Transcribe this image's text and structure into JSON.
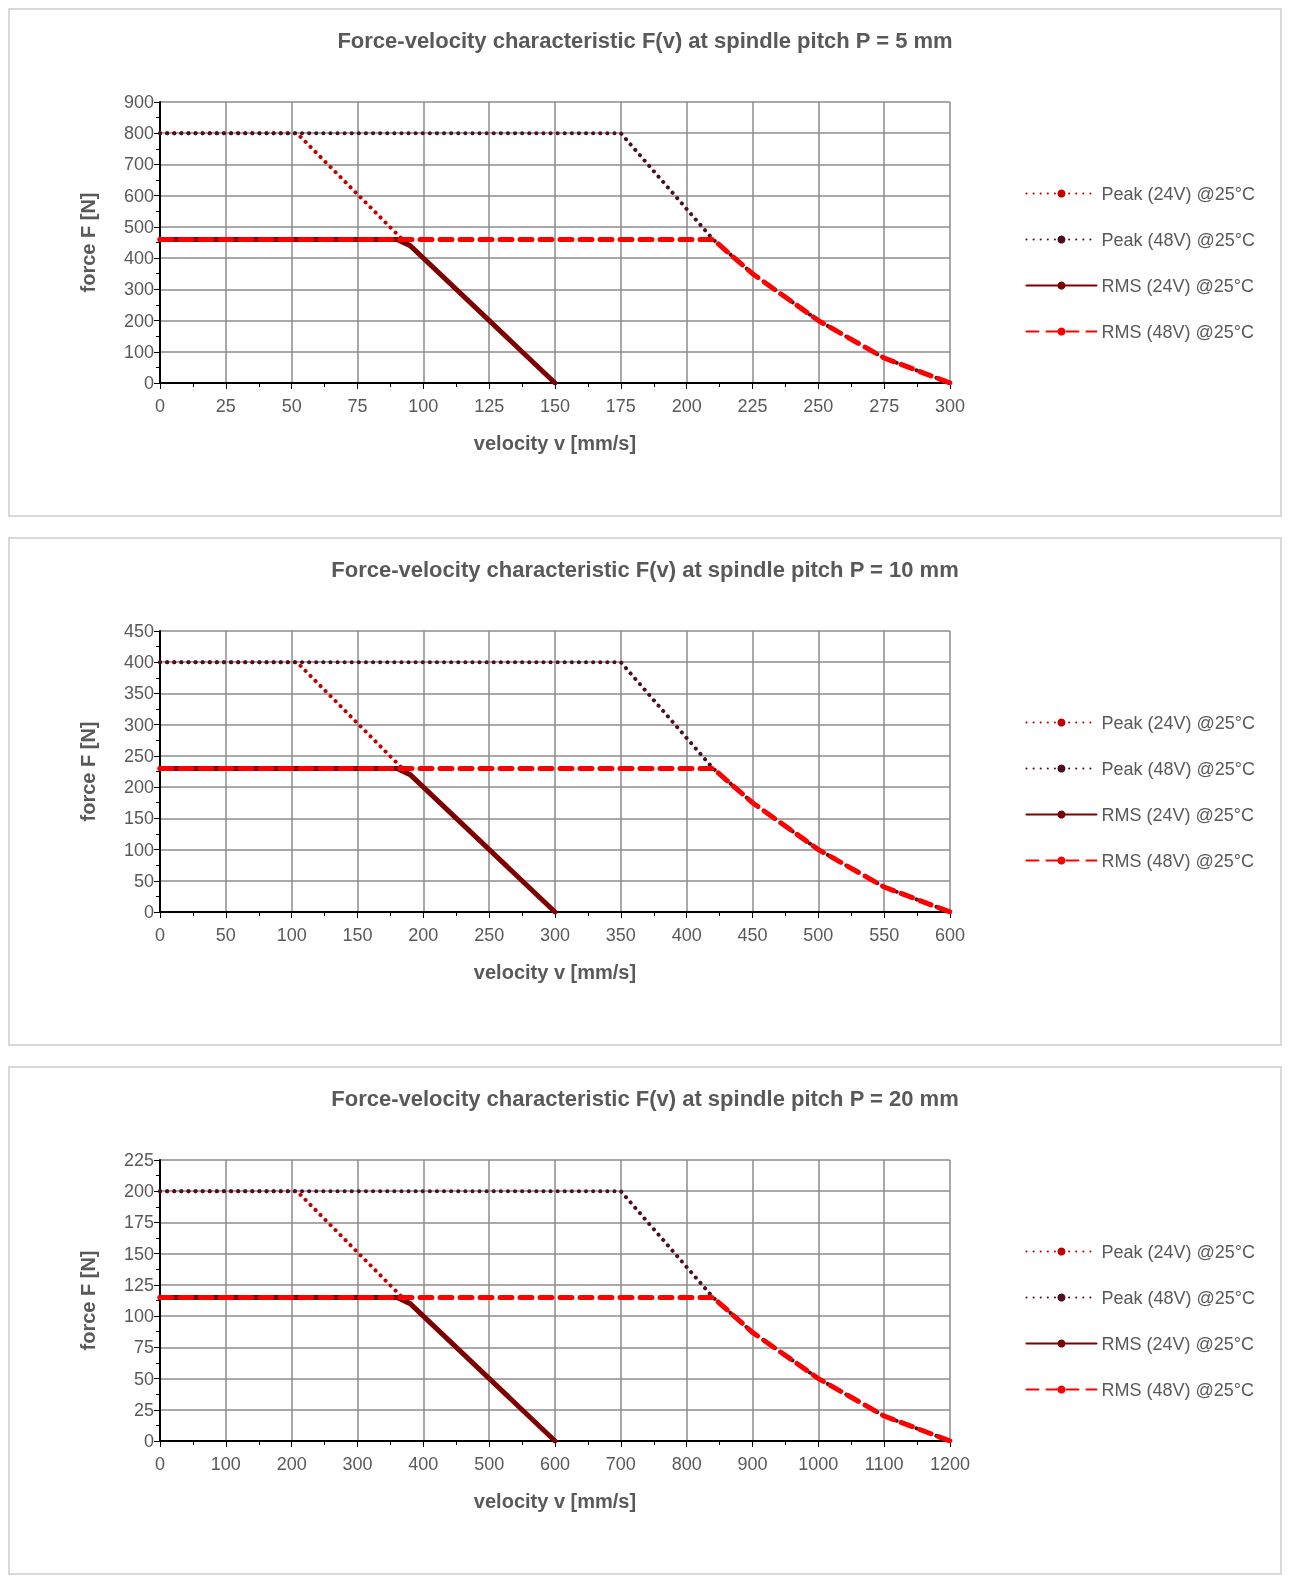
{
  "chart_data": [
    {
      "type": "line",
      "title": "Force-velocity characteristic F(v) at spindle pitch P = 5 mm",
      "xlabel": "velocity v [mm/s]",
      "ylabel": "force F [N]",
      "xlim": [
        0,
        300
      ],
      "xticks": [
        0,
        25,
        50,
        75,
        100,
        125,
        150,
        175,
        200,
        225,
        250,
        275,
        300
      ],
      "ylim": [
        0,
        900
      ],
      "yticks": [
        0,
        100,
        200,
        300,
        400,
        500,
        600,
        700,
        800,
        900
      ],
      "grid": true,
      "legend": "right",
      "series": [
        {
          "name": "Peak (24V) @25°C",
          "color": "#c00000",
          "line_style": "dotted",
          "x": [
            0,
            52,
            92
          ],
          "values": [
            800,
            800,
            460
          ]
        },
        {
          "name": "Peak (48V) @25°C",
          "color": "#4d0f1f",
          "line_style": "dotted",
          "x": [
            0,
            175,
            210,
            225,
            250,
            275,
            300
          ],
          "values": [
            800,
            800,
            460,
            350,
            200,
            80,
            0
          ]
        },
        {
          "name": "RMS (24V) @25°C",
          "color": "#7f0000",
          "line_style": "solid",
          "x": [
            0,
            90,
            95,
            150
          ],
          "values": [
            460,
            460,
            440,
            0
          ]
        },
        {
          "name": "RMS (48V) @25°C",
          "color": "#ff0000",
          "line_style": "dashed",
          "x": [
            0,
            210,
            225,
            250,
            275,
            300
          ],
          "values": [
            460,
            460,
            350,
            200,
            80,
            0
          ]
        }
      ]
    },
    {
      "type": "line",
      "title": "Force-velocity characteristic F(v) at spindle pitch P = 10 mm",
      "xlabel": "velocity v [mm/s]",
      "ylabel": "force F [N]",
      "xlim": [
        0,
        600
      ],
      "xticks": [
        0,
        50,
        100,
        150,
        200,
        250,
        300,
        350,
        400,
        450,
        500,
        550,
        600
      ],
      "ylim": [
        0,
        450
      ],
      "yticks": [
        0,
        50,
        100,
        150,
        200,
        250,
        300,
        350,
        400,
        450
      ],
      "grid": true,
      "legend": "right",
      "series": [
        {
          "name": "Peak (24V) @25°C",
          "color": "#c00000",
          "line_style": "dotted",
          "x": [
            0,
            104,
            184
          ],
          "values": [
            400,
            400,
            230
          ]
        },
        {
          "name": "Peak (48V) @25°C",
          "color": "#4d0f1f",
          "line_style": "dotted",
          "x": [
            0,
            350,
            420,
            450,
            500,
            550,
            600
          ],
          "values": [
            400,
            400,
            230,
            175,
            100,
            40,
            0
          ]
        },
        {
          "name": "RMS (24V) @25°C",
          "color": "#7f0000",
          "line_style": "solid",
          "x": [
            0,
            180,
            190,
            300
          ],
          "values": [
            230,
            230,
            220,
            0
          ]
        },
        {
          "name": "RMS (48V) @25°C",
          "color": "#ff0000",
          "line_style": "dashed",
          "x": [
            0,
            420,
            450,
            500,
            550,
            600
          ],
          "values": [
            230,
            230,
            175,
            100,
            40,
            0
          ]
        }
      ]
    },
    {
      "type": "line",
      "title": "Force-velocity characteristic F(v) at spindle pitch P = 20 mm",
      "xlabel": "velocity v [mm/s]",
      "ylabel": "force F [N]",
      "xlim": [
        0,
        1200
      ],
      "xticks": [
        0,
        100,
        200,
        300,
        400,
        500,
        600,
        700,
        800,
        900,
        1000,
        1100,
        1200
      ],
      "ylim": [
        0,
        225
      ],
      "yticks": [
        0,
        25,
        50,
        75,
        100,
        125,
        150,
        175,
        200,
        225
      ],
      "grid": true,
      "legend": "right",
      "series": [
        {
          "name": "Peak (24V) @25°C",
          "color": "#c00000",
          "line_style": "dotted",
          "x": [
            0,
            208,
            368
          ],
          "values": [
            200,
            200,
            115
          ]
        },
        {
          "name": "Peak (48V) @25°C",
          "color": "#4d0f1f",
          "line_style": "dotted",
          "x": [
            0,
            700,
            840,
            900,
            1000,
            1100,
            1200
          ],
          "values": [
            200,
            200,
            115,
            87,
            50,
            20,
            0
          ]
        },
        {
          "name": "RMS (24V) @25°C",
          "color": "#7f0000",
          "line_style": "solid",
          "x": [
            0,
            360,
            380,
            600
          ],
          "values": [
            115,
            115,
            110,
            0
          ]
        },
        {
          "name": "RMS (48V) @25°C",
          "color": "#ff0000",
          "line_style": "dashed",
          "x": [
            0,
            840,
            900,
            1000,
            1100,
            1200
          ],
          "values": [
            115,
            115,
            87,
            50,
            20,
            0
          ]
        }
      ]
    }
  ]
}
